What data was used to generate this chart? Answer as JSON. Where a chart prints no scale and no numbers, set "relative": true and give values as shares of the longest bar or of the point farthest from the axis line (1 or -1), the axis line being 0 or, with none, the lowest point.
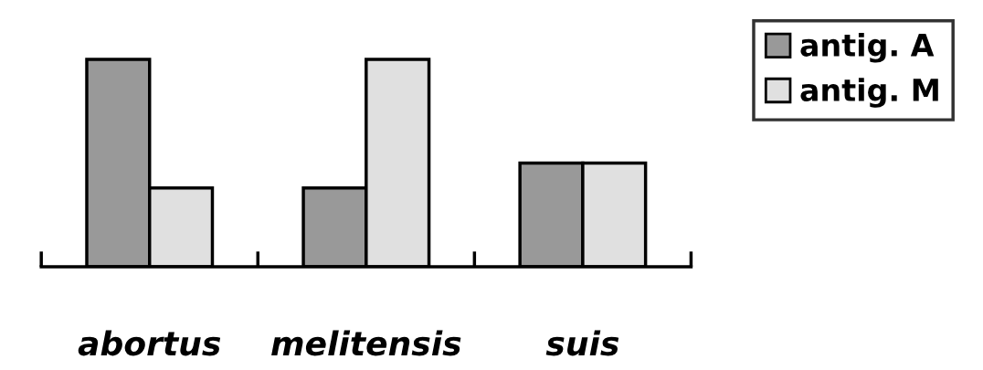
{
  "chart_data": {
    "type": "bar",
    "relative": true,
    "categories": [
      "abortus",
      "melitensis",
      "suis"
    ],
    "series": [
      {
        "name": "antig. A",
        "color": "#999999",
        "values": [
          1,
          0.38,
          0.5
        ]
      },
      {
        "name": "antig. M",
        "color": "#e0e0e0",
        "values": [
          0.38,
          1,
          0.5
        ]
      }
    ],
    "legend": "top right",
    "grid": false
  }
}
